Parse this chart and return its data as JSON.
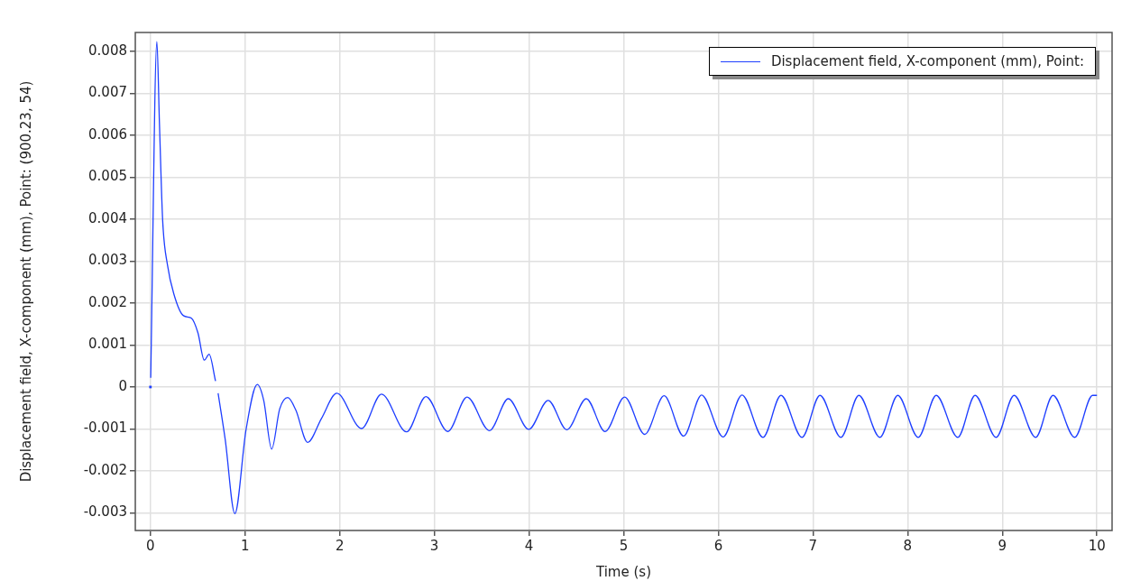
{
  "chart_data": {
    "type": "line",
    "xlabel": "Time (s)",
    "ylabel": "Displacement field, X-component (mm), Point: (900.23, 54)",
    "xlim": [
      -0.16,
      10.16
    ],
    "ylim": [
      -0.00342,
      0.00845
    ],
    "xticks": [
      0,
      1,
      2,
      3,
      4,
      5,
      6,
      7,
      8,
      9,
      10
    ],
    "yticks": [
      -0.003,
      -0.002,
      -0.001,
      0,
      0.001,
      0.002,
      0.003,
      0.004,
      0.005,
      0.006,
      0.007,
      0.008
    ],
    "grid": true,
    "legend": "top right",
    "marker": "none",
    "line_style": "solid",
    "series": [
      {
        "name": "Displacement field, X-component (mm), Point:",
        "color": "#1f3fff",
        "x": [
          0,
          0.001,
          0.003,
          0.068,
          0.095,
          0.129,
          0.18,
          0.247,
          0.349,
          0.434,
          0.502,
          0.569,
          0.62,
          0.688,
          0.7,
          0.715,
          0.79,
          0.892,
          1.01,
          1.129,
          1.197,
          1.281,
          1.366,
          1.451,
          1.536,
          1.661,
          1.807,
          1.969,
          2.231,
          2.441,
          2.706,
          2.911,
          3.142,
          3.345,
          3.582,
          3.781,
          3.997,
          4.202,
          4.399,
          4.605,
          4.804,
          5.01,
          5.222,
          5.427,
          5.633,
          5.823,
          6.051,
          6.25,
          6.472,
          6.662,
          6.884,
          7.074,
          7.295,
          7.485,
          7.707,
          7.896,
          8.112,
          8.302,
          8.53,
          8.713,
          8.935,
          9.125,
          9.353,
          9.536,
          9.765,
          9.954,
          10
        ],
        "values": [
          0,
          null,
          0.00022,
          0.00823,
          0.0063,
          0.00398,
          0.00291,
          0.00222,
          0.0017,
          0.00164,
          0.00129,
          0.00064,
          0.00078,
          0.00014,
          null,
          -0.00015,
          -0.00125,
          -0.00302,
          -0.00102,
          6e-05,
          -0.00032,
          -0.00148,
          -0.00052,
          -0.00025,
          -0.00055,
          -0.00132,
          -0.00075,
          -0.00015,
          -0.00099,
          -0.00017,
          -0.00107,
          -0.00023,
          -0.00106,
          -0.00024,
          -0.00104,
          -0.00028,
          -0.00101,
          -0.00032,
          -0.00102,
          -0.00028,
          -0.00106,
          -0.00024,
          -0.00113,
          -0.00021,
          -0.00117,
          -0.00019,
          -0.00119,
          -0.00019,
          -0.0012,
          -0.0002,
          -0.0012,
          -0.0002,
          -0.0012,
          -0.0002,
          -0.0012,
          -0.0002,
          -0.0012,
          -0.0002,
          -0.0012,
          -0.0002,
          -0.0012,
          -0.0002,
          -0.0012,
          -0.0002,
          -0.0012,
          -0.0002,
          -0.0002
        ]
      }
    ]
  }
}
